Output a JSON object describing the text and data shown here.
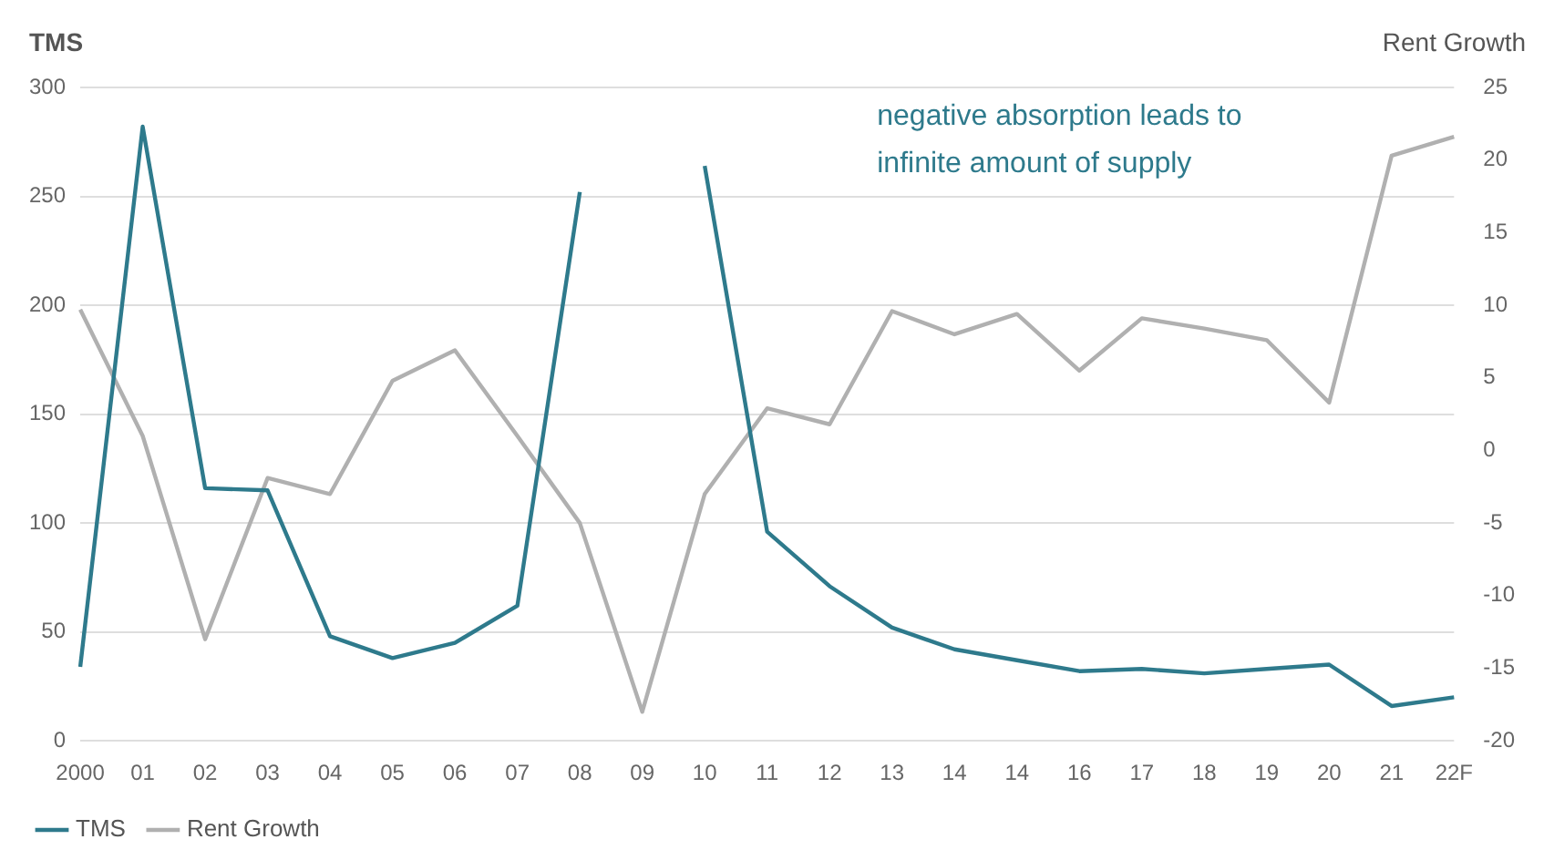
{
  "chart_data": {
    "type": "line",
    "ylabel": "TMS",
    "y2label": "Rent Growth",
    "annotations": [
      "negative absorption leads to infinite amount of supply"
    ],
    "categories": [
      "2000",
      "01",
      "02",
      "03",
      "04",
      "05",
      "06",
      "07",
      "08",
      "09",
      "10",
      "11",
      "12",
      "13",
      "14",
      "14",
      "16",
      "17",
      "18",
      "19",
      "20",
      "21",
      "22F"
    ],
    "series": [
      {
        "name": "TMS",
        "color": "#2e7a8c",
        "values": [
          34,
          282,
          116,
          115,
          48,
          38,
          45,
          62,
          252,
          null,
          264,
          96,
          71,
          52,
          42,
          37,
          32,
          33,
          31,
          33,
          35,
          16,
          20
        ]
      },
      {
        "name": "Rent Growth",
        "color": "#b0b0b0",
        "axis": "y2",
        "values": [
          9.7,
          1.0,
          -13,
          -1.9,
          -3.0,
          4.8,
          6.9,
          1.0,
          -5.0,
          -18,
          -3.0,
          2.9,
          1.8,
          9.6,
          8.0,
          9.4,
          5.5,
          9.1,
          8.4,
          7.6,
          3.3,
          20.3,
          21.6
        ]
      }
    ],
    "ylim": [
      0,
      300
    ],
    "yticks": [
      0,
      50,
      100,
      150,
      200,
      250,
      300
    ],
    "y2lim": [
      -20,
      25
    ],
    "y2ticks": [
      -20,
      -15,
      -10,
      -5,
      0,
      5,
      10,
      15,
      20,
      25
    ],
    "grid": "y",
    "legend": "bottom left",
    "marker": "none",
    "line_style": "solid"
  }
}
